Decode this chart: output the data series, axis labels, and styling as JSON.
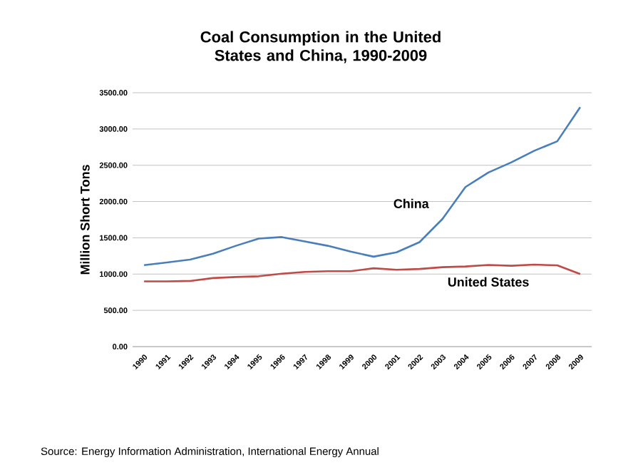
{
  "chart_data": {
    "type": "line",
    "title": "Coal Consumption in the United States and China, 1990-2009",
    "ylabel": "Million Short Tons",
    "categories": [
      "1990",
      "1991",
      "1992",
      "1993",
      "1994",
      "1995",
      "1996",
      "1997",
      "1998",
      "1999",
      "2000",
      "2001",
      "2002",
      "2003",
      "2004",
      "2005",
      "2006",
      "2007",
      "2008",
      "2009"
    ],
    "series": [
      {
        "name": "China",
        "color": "#4a7ebb",
        "values": [
          1124,
          1160,
          1200,
          1280,
          1390,
          1490,
          1510,
          1450,
          1390,
          1310,
          1240,
          1300,
          1440,
          1760,
          2200,
          2400,
          2540,
          2700,
          2830,
          3300
        ]
      },
      {
        "name": "United States",
        "color": "#be4b48",
        "values": [
          900,
          900,
          905,
          945,
          960,
          970,
          1005,
          1030,
          1040,
          1040,
          1080,
          1060,
          1070,
          1095,
          1105,
          1125,
          1115,
          1130,
          1120,
          1000
        ]
      }
    ],
    "ylim": [
      0,
      3500
    ],
    "yticks": [
      {
        "value": 0,
        "label": "0.00"
      },
      {
        "value": 500,
        "label": "500.00"
      },
      {
        "value": 1000,
        "label": "1000.00"
      },
      {
        "value": 1500,
        "label": "1500.00"
      },
      {
        "value": 2000,
        "label": "2000.00"
      },
      {
        "value": 2500,
        "label": "2500.00"
      },
      {
        "value": 3000,
        "label": "3000.00"
      },
      {
        "value": 3500,
        "label": "3500.00"
      }
    ],
    "grid": "y",
    "annotations": [
      "Source: Energy Information Administration, International Energy Annual"
    ]
  }
}
